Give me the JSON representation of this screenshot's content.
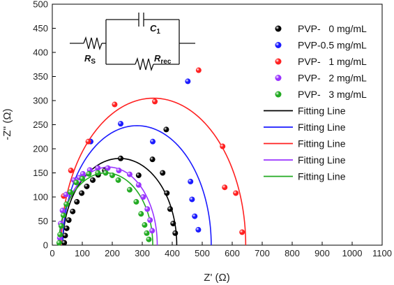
{
  "chart_data": {
    "type": "scatter",
    "xlabel": "Z' (Ω)",
    "ylabel": "-Z'' (Ω)",
    "xlim": [
      0,
      1100
    ],
    "ylim": [
      0,
      500
    ],
    "xticks": [
      "0",
      "100",
      "200",
      "300",
      "400",
      "500",
      "600",
      "700",
      "800",
      "900",
      "1000",
      "1100"
    ],
    "yticks": [
      "0",
      "50",
      "100",
      "150",
      "200",
      "250",
      "300",
      "350",
      "400",
      "450",
      "500"
    ],
    "legend_position": "top-right",
    "series": [
      {
        "name": "PVP-   0 mg/mL",
        "color": "#000000",
        "points": [
          [
            40,
            5
          ],
          [
            43,
            20
          ],
          [
            48,
            35
          ],
          [
            55,
            52
          ],
          [
            68,
            70
          ],
          [
            82,
            90
          ],
          [
            98,
            108
          ],
          [
            115,
            122
          ],
          [
            135,
            135
          ],
          [
            153,
            146
          ],
          [
            175,
            155
          ],
          [
            228,
            180
          ],
          [
            288,
            145
          ],
          [
            334,
            178
          ],
          [
            368,
            150
          ],
          [
            382,
            108
          ],
          [
            393,
            75
          ],
          [
            403,
            45
          ],
          [
            410,
            25
          ],
          [
            380,
            240
          ]
        ]
      },
      {
        "name": "PVP-0.5 mg/mL",
        "color": "#1a1aff",
        "points": [
          [
            128,
            215
          ],
          [
            228,
            252
          ],
          [
            335,
            215
          ],
          [
            452,
            340
          ],
          [
            461,
            132
          ],
          [
            466,
            95
          ],
          [
            475,
            60
          ],
          [
            487,
            32
          ]
        ]
      },
      {
        "name": "PVP-   1 mg/mL",
        "color": "#ff2020",
        "points": [
          [
            38,
            102
          ],
          [
            62,
            155
          ],
          [
            120,
            215
          ],
          [
            208,
            292
          ],
          [
            342,
            298
          ],
          [
            488,
            363
          ],
          [
            568,
            205
          ],
          [
            575,
            120
          ],
          [
            612,
            108
          ],
          [
            633,
            27
          ]
        ]
      },
      {
        "name": "PVP-   2 mg/mL",
        "color": "#9933ff",
        "points": [
          [
            25,
            15
          ],
          [
            28,
            45
          ],
          [
            34,
            72
          ],
          [
            46,
            105
          ],
          [
            72,
            135
          ],
          [
            90,
            140
          ],
          [
            102,
            148
          ],
          [
            125,
            156
          ],
          [
            152,
            160
          ],
          [
            185,
            160
          ],
          [
            222,
            155
          ],
          [
            258,
            147
          ],
          [
            288,
            125
          ],
          [
            303,
            100
          ],
          [
            317,
            75
          ],
          [
            326,
            52
          ],
          [
            333,
            30
          ]
        ]
      },
      {
        "name": "PVP-   3 mg/mL",
        "color": "#22aa22",
        "points": [
          [
            23,
            5
          ],
          [
            26,
            22
          ],
          [
            30,
            40
          ],
          [
            37,
            62
          ],
          [
            47,
            85
          ],
          [
            60,
            110
          ],
          [
            80,
            130
          ],
          [
            100,
            138
          ],
          [
            122,
            148
          ],
          [
            152,
            150
          ],
          [
            178,
            150
          ],
          [
            200,
            145
          ],
          [
            220,
            135
          ],
          [
            258,
            115
          ],
          [
            280,
            90
          ],
          [
            296,
            65
          ],
          [
            308,
            42
          ],
          [
            315,
            25
          ],
          [
            322,
            12
          ]
        ]
      }
    ],
    "fits": [
      {
        "name": "Fitting Line",
        "color": "#000000",
        "x0": 35,
        "x1": 415,
        "peak": 180
      },
      {
        "name": "Fitting Line",
        "color": "#1a1aff",
        "x0": 35,
        "x1": 530,
        "peak": 248
      },
      {
        "name": "Fitting Line",
        "color": "#ff2020",
        "x0": 30,
        "x1": 645,
        "peak": 305
      },
      {
        "name": "Fitting Line",
        "color": "#9933ff",
        "x0": 25,
        "x1": 350,
        "peak": 162
      },
      {
        "name": "Fitting Line",
        "color": "#22aa22",
        "x0": 22,
        "x1": 335,
        "peak": 150
      }
    ],
    "inset": {
      "c_label": "C",
      "c_sub": "1",
      "rs_label": "R",
      "rs_sub": "S",
      "rrec_label": "R",
      "rrec_sub": "rec"
    }
  }
}
